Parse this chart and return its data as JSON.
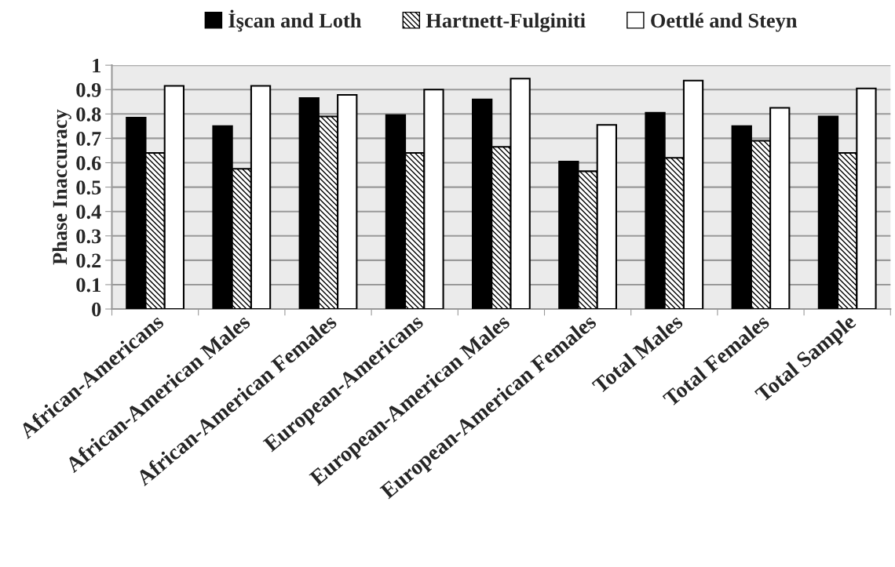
{
  "chart_data": {
    "type": "bar",
    "ylabel": "Phase Inaccuracy",
    "categories": [
      "African-Americans",
      "African-American Males",
      "African-American Females",
      "European-Americans",
      "European-American Males",
      "European-American Females",
      "Total Males",
      "Total Females",
      "Total Sample"
    ],
    "series": [
      {
        "name": "İşcan and Loth",
        "color": "#000000",
        "values": [
          0.785,
          0.75,
          0.865,
          0.795,
          0.86,
          0.605,
          0.805,
          0.75,
          0.79
        ]
      },
      {
        "name": "Hartnett-Fulginiti",
        "color": "#000000",
        "values": [
          0.64,
          0.575,
          0.79,
          0.64,
          0.665,
          0.565,
          0.62,
          0.69,
          0.64
        ]
      },
      {
        "name": "Oettlé and Steyn",
        "color": "#ffffff",
        "values": [
          0.915,
          0.915,
          0.878,
          0.9,
          0.945,
          0.755,
          0.937,
          0.825,
          0.905
        ]
      }
    ],
    "ylim": [
      0,
      1
    ],
    "yticks": [
      0,
      0.1,
      0.2,
      0.3,
      0.4,
      0.5,
      0.6,
      0.7,
      0.8,
      0.9,
      1
    ],
    "grid": "y",
    "legend": "top"
  }
}
